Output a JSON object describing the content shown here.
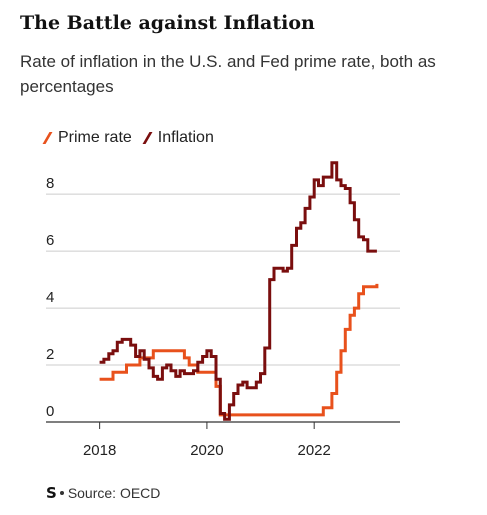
{
  "header": {
    "title": "The Battle against Inflation",
    "subtitle": "Rate of inflation in the U.S. and Fed prime rate, both as percentages"
  },
  "footer": {
    "logo": "S",
    "source": "Source: OECD"
  },
  "colors": {
    "prime": "#e8511c",
    "inflation": "#7a0e0e",
    "grid": "#cccccc",
    "axis": "#333333"
  },
  "chart_data": {
    "type": "line",
    "title": "The Battle against Inflation",
    "subtitle": "Rate of inflation in the U.S. and Fed prime rate, both as percentages",
    "xlabel": "",
    "ylabel": "",
    "x_ticks": [
      2018,
      2020,
      2022
    ],
    "y_ticks": [
      0,
      2,
      4,
      6,
      8
    ],
    "xlim": [
      2017.0,
      2023.6
    ],
    "ylim": [
      0,
      9.2
    ],
    "grid": true,
    "legend": "top-left",
    "series": [
      {
        "name": "Prime rate",
        "color": "#e8511c",
        "step": true,
        "x": [
          2018.0,
          2018.25,
          2018.5,
          2018.75,
          2019.0,
          2019.58,
          2019.67,
          2019.83,
          2020.17,
          2020.25,
          2022.17,
          2022.33,
          2022.42,
          2022.5,
          2022.58,
          2022.67,
          2022.75,
          2022.83,
          2022.92,
          2023.0,
          2023.08,
          2023.17
        ],
        "values": [
          1.5,
          1.75,
          2.0,
          2.25,
          2.5,
          2.25,
          2.0,
          1.75,
          1.25,
          0.25,
          0.5,
          1.0,
          1.75,
          2.5,
          3.25,
          3.75,
          4.0,
          4.5,
          4.75,
          4.75,
          4.75,
          4.85
        ]
      },
      {
        "name": "Inflation",
        "color": "#7a0e0e",
        "step": true,
        "x": [
          2018.0,
          2018.08,
          2018.17,
          2018.25,
          2018.33,
          2018.42,
          2018.5,
          2018.58,
          2018.67,
          2018.75,
          2018.83,
          2018.92,
          2019.0,
          2019.08,
          2019.17,
          2019.25,
          2019.33,
          2019.42,
          2019.5,
          2019.58,
          2019.67,
          2019.75,
          2019.83,
          2019.92,
          2020.0,
          2020.08,
          2020.17,
          2020.25,
          2020.33,
          2020.42,
          2020.5,
          2020.58,
          2020.67,
          2020.75,
          2020.83,
          2020.92,
          2021.0,
          2021.08,
          2021.17,
          2021.25,
          2021.33,
          2021.42,
          2021.5,
          2021.58,
          2021.67,
          2021.75,
          2021.83,
          2021.92,
          2022.0,
          2022.08,
          2022.17,
          2022.25,
          2022.33,
          2022.42,
          2022.5,
          2022.58,
          2022.67,
          2022.75,
          2022.83,
          2022.92,
          2023.0,
          2023.08,
          2023.17
        ],
        "values": [
          2.1,
          2.2,
          2.4,
          2.5,
          2.8,
          2.9,
          2.9,
          2.7,
          2.3,
          2.5,
          2.2,
          1.9,
          1.6,
          1.5,
          1.9,
          2.0,
          1.8,
          1.6,
          1.8,
          1.7,
          1.7,
          1.8,
          2.1,
          2.3,
          2.5,
          2.3,
          1.5,
          0.3,
          0.1,
          0.6,
          1.0,
          1.3,
          1.4,
          1.2,
          1.2,
          1.4,
          1.7,
          2.6,
          5.0,
          5.4,
          5.4,
          5.3,
          5.4,
          6.2,
          6.8,
          7.0,
          7.5,
          7.9,
          8.5,
          8.3,
          8.6,
          8.6,
          9.1,
          8.5,
          8.3,
          8.2,
          7.7,
          7.1,
          6.5,
          6.4,
          6.0,
          6.0,
          6.0
        ]
      }
    ]
  }
}
